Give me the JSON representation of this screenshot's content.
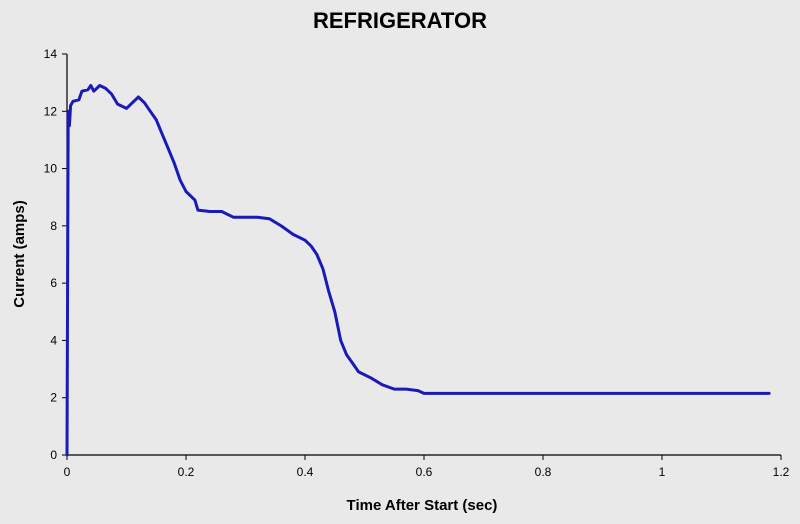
{
  "chart_data": {
    "type": "line",
    "title": "REFRIGERATOR",
    "xlabel": "Time After Start (sec)",
    "ylabel": "Current (amps)",
    "xlim": [
      0,
      1.2
    ],
    "ylim": [
      0,
      14
    ],
    "x_ticks": [
      0,
      0.2,
      0.4,
      0.6,
      0.8,
      1,
      1.2
    ],
    "x_tick_labels": [
      "0",
      "0.2",
      "0.4",
      "0.6",
      "0.8",
      "1",
      "1.2"
    ],
    "y_ticks": [
      0,
      2,
      4,
      6,
      8,
      10,
      12,
      14
    ],
    "y_tick_labels": [
      "0",
      "2",
      "4",
      "6",
      "8",
      "10",
      "12",
      "14"
    ],
    "grid": false,
    "legend": "none",
    "colors": {
      "line": "#1a1ab8",
      "axis": "#000000",
      "background": "#e9e9e9"
    },
    "series": [
      {
        "points": [
          [
            0.0,
            0.0
          ],
          [
            0.002,
            12.0
          ],
          [
            0.004,
            11.5
          ],
          [
            0.006,
            12.2
          ],
          [
            0.01,
            12.35
          ],
          [
            0.02,
            12.4
          ],
          [
            0.025,
            12.7
          ],
          [
            0.035,
            12.75
          ],
          [
            0.04,
            12.9
          ],
          [
            0.045,
            12.7
          ],
          [
            0.055,
            12.9
          ],
          [
            0.065,
            12.8
          ],
          [
            0.075,
            12.6
          ],
          [
            0.085,
            12.25
          ],
          [
            0.1,
            12.1
          ],
          [
            0.11,
            12.3
          ],
          [
            0.12,
            12.5
          ],
          [
            0.13,
            12.3
          ],
          [
            0.14,
            12.0
          ],
          [
            0.15,
            11.7
          ],
          [
            0.16,
            11.2
          ],
          [
            0.17,
            10.7
          ],
          [
            0.18,
            10.2
          ],
          [
            0.19,
            9.6
          ],
          [
            0.2,
            9.2
          ],
          [
            0.215,
            8.9
          ],
          [
            0.22,
            8.55
          ],
          [
            0.24,
            8.5
          ],
          [
            0.26,
            8.5
          ],
          [
            0.28,
            8.3
          ],
          [
            0.3,
            8.3
          ],
          [
            0.32,
            8.3
          ],
          [
            0.34,
            8.25
          ],
          [
            0.36,
            8.0
          ],
          [
            0.38,
            7.7
          ],
          [
            0.4,
            7.5
          ],
          [
            0.41,
            7.3
          ],
          [
            0.42,
            7.0
          ],
          [
            0.43,
            6.5
          ],
          [
            0.44,
            5.7
          ],
          [
            0.45,
            5.0
          ],
          [
            0.46,
            4.0
          ],
          [
            0.47,
            3.5
          ],
          [
            0.48,
            3.2
          ],
          [
            0.49,
            2.9
          ],
          [
            0.51,
            2.7
          ],
          [
            0.53,
            2.45
          ],
          [
            0.55,
            2.3
          ],
          [
            0.57,
            2.3
          ],
          [
            0.59,
            2.25
          ],
          [
            0.6,
            2.15
          ],
          [
            0.62,
            2.15
          ],
          [
            0.7,
            2.15
          ],
          [
            0.8,
            2.15
          ],
          [
            0.9,
            2.15
          ],
          [
            1.0,
            2.15
          ],
          [
            1.1,
            2.15
          ],
          [
            1.18,
            2.15
          ]
        ]
      }
    ]
  }
}
